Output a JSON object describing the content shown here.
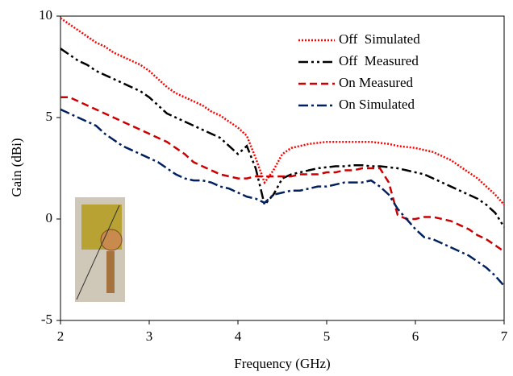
{
  "chart_data": {
    "type": "line",
    "x_label": "Frequency (GHz)",
    "y_label": "Gain (dBi)",
    "x": [
      2,
      2.1,
      2.2,
      2.3,
      2.4,
      2.5,
      2.6,
      2.7,
      2.8,
      2.9,
      3,
      3.1,
      3.2,
      3.3,
      3.4,
      3.5,
      3.6,
      3.7,
      3.8,
      3.9,
      4,
      4.1,
      4.2,
      4.3,
      4.4,
      4.5,
      4.6,
      4.7,
      4.8,
      4.9,
      5,
      5.1,
      5.2,
      5.3,
      5.4,
      5.5,
      5.6,
      5.7,
      5.8,
      5.9,
      6,
      6.1,
      6.2,
      6.3,
      6.4,
      6.5,
      6.6,
      6.7,
      6.8,
      6.9,
      7
    ],
    "series": [
      {
        "name": "Off  Simulated",
        "color": "#ff0000",
        "style": "dotted",
        "values": [
          9.9,
          9.6,
          9.3,
          9.0,
          8.7,
          8.5,
          8.2,
          8.0,
          7.8,
          7.6,
          7.3,
          6.9,
          6.5,
          6.2,
          6.0,
          5.8,
          5.6,
          5.3,
          5.1,
          4.8,
          4.5,
          4.1,
          3.0,
          1.8,
          2.4,
          3.2,
          3.5,
          3.6,
          3.7,
          3.75,
          3.8,
          3.8,
          3.8,
          3.8,
          3.8,
          3.8,
          3.75,
          3.7,
          3.6,
          3.55,
          3.5,
          3.4,
          3.3,
          3.1,
          2.9,
          2.6,
          2.3,
          2.0,
          1.6,
          1.2,
          0.7
        ]
      },
      {
        "name": "Off  Measured",
        "color": "#000000",
        "style": "dashdotdot",
        "values": [
          8.4,
          8.1,
          7.8,
          7.6,
          7.3,
          7.1,
          6.9,
          6.7,
          6.5,
          6.3,
          6.0,
          5.6,
          5.2,
          5.0,
          4.8,
          4.6,
          4.4,
          4.2,
          4.0,
          3.6,
          3.2,
          3.6,
          2.5,
          0.7,
          1.2,
          2.0,
          2.2,
          2.3,
          2.4,
          2.5,
          2.55,
          2.6,
          2.6,
          2.65,
          2.65,
          2.6,
          2.6,
          2.55,
          2.5,
          2.4,
          2.3,
          2.2,
          2.0,
          1.8,
          1.6,
          1.4,
          1.2,
          1.0,
          0.7,
          0.3,
          -0.4
        ]
      },
      {
        "name": "On Measured",
        "color": "#cc0000",
        "style": "dashed",
        "values": [
          6.0,
          6.0,
          5.8,
          5.6,
          5.4,
          5.2,
          5.0,
          4.8,
          4.6,
          4.4,
          4.2,
          4.0,
          3.8,
          3.5,
          3.2,
          2.8,
          2.6,
          2.4,
          2.2,
          2.1,
          2.0,
          2.0,
          2.1,
          2.1,
          2.1,
          2.1,
          2.1,
          2.2,
          2.2,
          2.2,
          2.3,
          2.3,
          2.4,
          2.4,
          2.5,
          2.5,
          2.5,
          1.8,
          0.2,
          0.0,
          0.0,
          0.1,
          0.1,
          0.0,
          -0.1,
          -0.3,
          -0.5,
          -0.8,
          -1.0,
          -1.3,
          -1.6
        ]
      },
      {
        "name": "On Simulated",
        "color": "#002060",
        "style": "dashdot",
        "values": [
          5.4,
          5.2,
          5.0,
          4.8,
          4.6,
          4.2,
          3.9,
          3.6,
          3.4,
          3.2,
          3.0,
          2.8,
          2.5,
          2.2,
          2.0,
          1.9,
          1.9,
          1.8,
          1.6,
          1.5,
          1.3,
          1.1,
          1.0,
          0.8,
          1.2,
          1.3,
          1.4,
          1.4,
          1.5,
          1.6,
          1.6,
          1.7,
          1.8,
          1.8,
          1.8,
          1.9,
          1.6,
          1.2,
          0.5,
          0.0,
          -0.5,
          -0.9,
          -1.0,
          -1.2,
          -1.4,
          -1.6,
          -1.8,
          -2.1,
          -2.4,
          -2.8,
          -3.3
        ]
      }
    ],
    "xlim": [
      2,
      7
    ],
    "xticks": [
      2,
      3,
      4,
      5,
      6,
      7
    ],
    "ylim": [
      -5,
      10
    ],
    "yticks": [
      -5,
      0,
      5,
      10
    ],
    "grid": false,
    "legend": "upper right"
  }
}
